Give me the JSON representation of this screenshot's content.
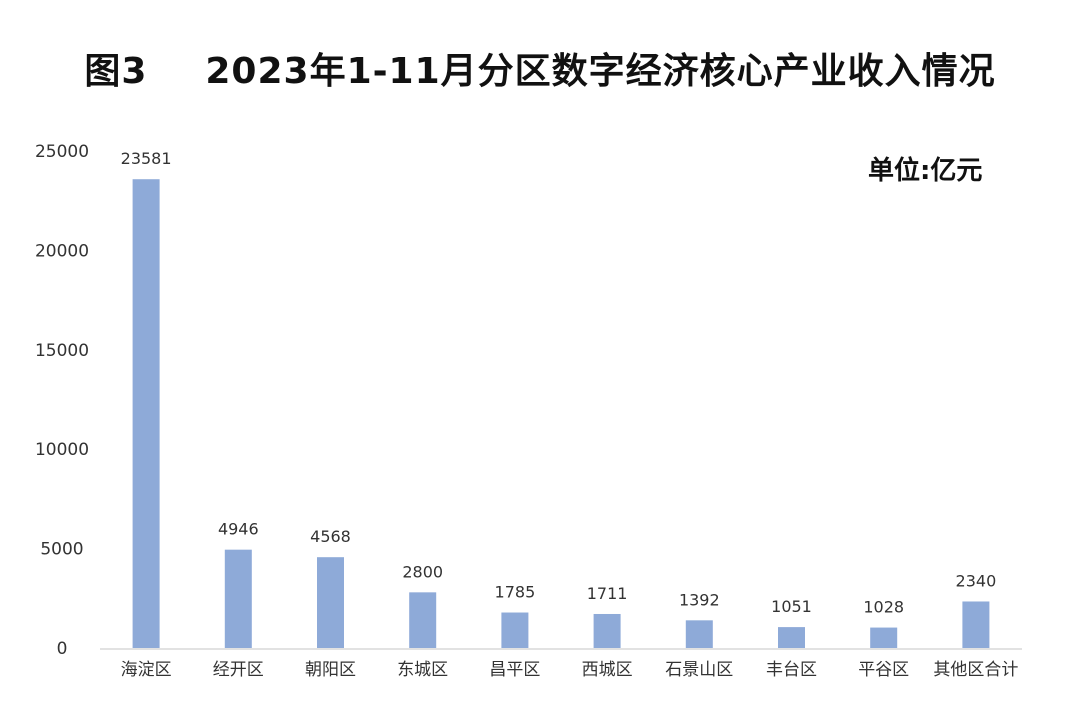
{
  "title": {
    "figure_label": "图3",
    "text": "2023年1-11月分区数字经济核心产业收入情况"
  },
  "unit_label": "单位:亿元",
  "colors": {
    "bar": "#8eaad8",
    "axis": "#d9d9d9"
  },
  "chart_data": {
    "type": "bar",
    "title": "2023年1-11月分区数字经济核心产业收入情况",
    "unit": "单位:亿元",
    "categories": [
      "海淀区",
      "经开区",
      "朝阳区",
      "东城区",
      "昌平区",
      "西城区",
      "石景山区",
      "丰台区",
      "平谷区",
      "其他区合计"
    ],
    "values": [
      23581,
      4946,
      4568,
      2800,
      1785,
      1711,
      1392,
      1051,
      1028,
      2340
    ],
    "data_labels": [
      "23581",
      "4946",
      "4568",
      "2800",
      "1785",
      "1711",
      "1392",
      "1051",
      "1028",
      "2340"
    ],
    "yticks": [
      0,
      5000,
      10000,
      15000,
      20000,
      25000
    ],
    "ytick_labels": [
      "0",
      "5000",
      "10000",
      "15000",
      "20000",
      "25000"
    ],
    "ylim": [
      0,
      25000
    ],
    "grid": false,
    "legend": "none"
  }
}
